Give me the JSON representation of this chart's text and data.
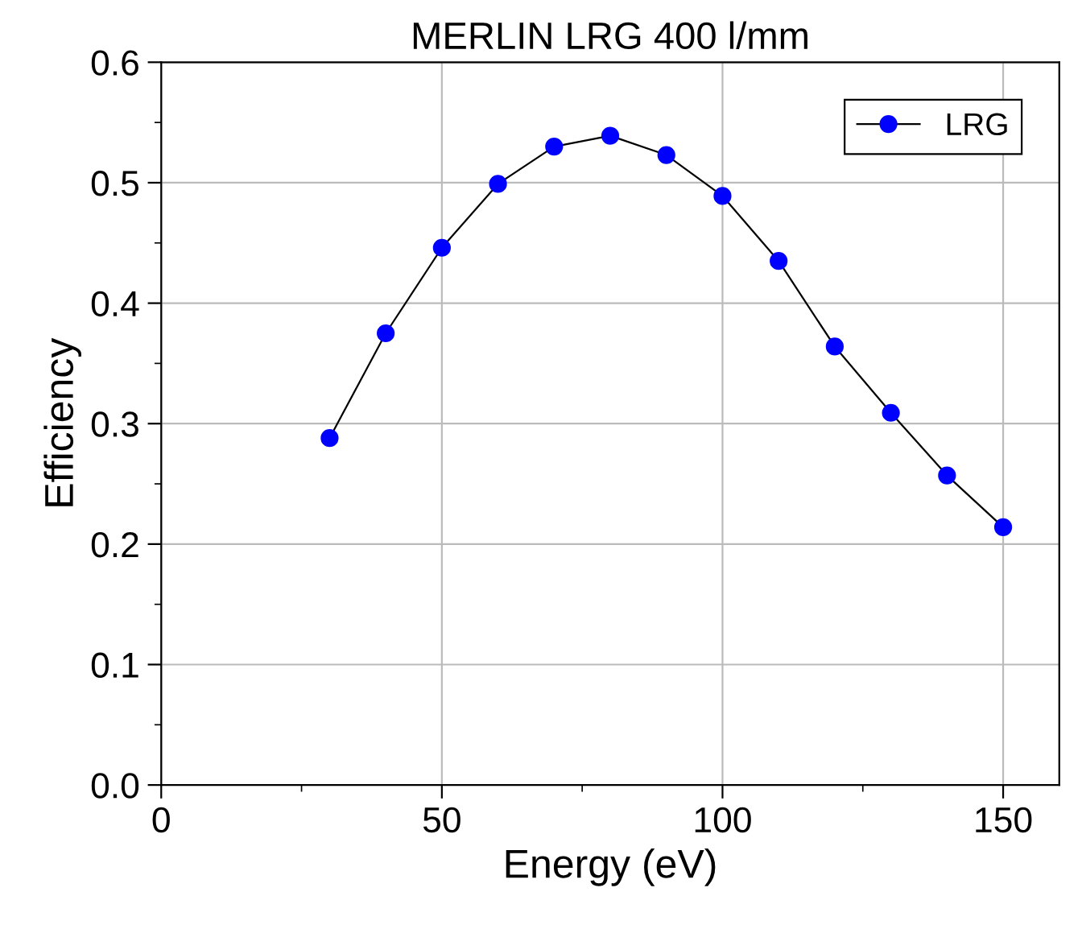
{
  "chart_data": {
    "type": "line",
    "title": "MERLIN LRG 400 l/mm",
    "xlabel": "Energy (eV)",
    "ylabel": "Efficiency",
    "x": [
      30,
      40,
      50,
      60,
      70,
      80,
      90,
      100,
      110,
      120,
      130,
      140,
      150
    ],
    "series": [
      {
        "name": "LRG",
        "color": "#0000ff",
        "values": [
          0.288,
          0.375,
          0.446,
          0.499,
          0.53,
          0.539,
          0.523,
          0.489,
          0.435,
          0.364,
          0.309,
          0.257,
          0.214
        ]
      }
    ],
    "xlim": [
      0,
      160
    ],
    "xticks": [
      0,
      50,
      100,
      150
    ],
    "ylim": [
      0,
      0.6
    ],
    "yticks": [
      {
        "value": 0,
        "label": "0.0"
      },
      0.1,
      0.2,
      0.3,
      0.4,
      0.5,
      0.6
    ],
    "grid": true,
    "legend": "top right",
    "marker": "circle",
    "line_style": "solid"
  }
}
